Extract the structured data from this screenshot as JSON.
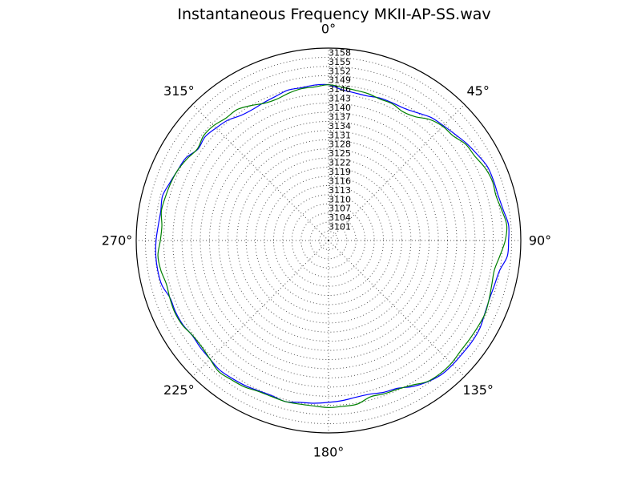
{
  "chart_data": {
    "type": "polar-line",
    "title": "Instantaneous Frequency  MKII-AP-SS.wav",
    "angle_direction": "clockwise",
    "zero_angle": "top",
    "angle_labels": [
      "0°",
      "45°",
      "90°",
      "135°",
      "180°",
      "225°",
      "270°",
      "315°"
    ],
    "radial_ticks": [
      3101,
      3104,
      3107,
      3110,
      3113,
      3116,
      3119,
      3122,
      3125,
      3128,
      3131,
      3134,
      3137,
      3140,
      3143,
      3146,
      3149,
      3152,
      3155,
      3158
    ],
    "r_range": [
      3098,
      3161
    ],
    "grid": true,
    "colors": {
      "blue": "#0000ff",
      "green": "#008000",
      "grid": "#555555",
      "axis": "#000000"
    },
    "series": [
      {
        "color": "blue",
        "theta_step_deg": 5,
        "values": [
          3149.0,
          3147.6,
          3147.1,
          3147.0,
          3147.6,
          3147.7,
          3147.9,
          3149.0,
          3150.5,
          3151.2,
          3152.1,
          3153.3,
          3154.3,
          3155.4,
          3155.5,
          3155.5,
          3156.1,
          3157.2,
          3157.0,
          3156.8,
          3154.9,
          3154.3,
          3154.1,
          3154.5,
          3155.3,
          3155.5,
          3155.4,
          3155.5,
          3155.4,
          3154.5,
          3153.2,
          3151.4,
          3150.9,
          3150.1,
          3150.1,
          3150.6,
          3151.0,
          3151.5,
          3151.8,
          3152.6,
          3152.1,
          3152.3,
          3152.8,
          3153.1,
          3153.4,
          3152.9,
          3152.7,
          3152.4,
          3153.1,
          3153.3,
          3153.2,
          3154.5,
          3154.8,
          3154.8,
          3154.5,
          3154.0,
          3153.8,
          3154.3,
          3153.3,
          3152.5,
          3152.0,
          3150.2,
          3150.8,
          3150.1,
          3149.4,
          3148.0,
          3147.6,
          3147.9,
          3148.3,
          3149.0,
          3148.8,
          3149.1
        ]
      },
      {
        "color": "green",
        "theta_step_deg": 5,
        "values": [
          3149.0,
          3148.4,
          3148.0,
          3147.8,
          3147.3,
          3147.4,
          3146.7,
          3147.5,
          3149.7,
          3150.9,
          3151.3,
          3152.9,
          3153.3,
          3154.5,
          3155.1,
          3154.8,
          3155.6,
          3156.6,
          3155.9,
          3154.4,
          3153.2,
          3153.4,
          3154.0,
          3154.6,
          3154.5,
          3154.4,
          3154.4,
          3154.9,
          3154.9,
          3154.4,
          3152.7,
          3151.7,
          3151.4,
          3151.0,
          3152.4,
          3152.5,
          3152.7,
          3152.4,
          3152.4,
          3152.6,
          3152.4,
          3152.5,
          3153.3,
          3153.6,
          3154.0,
          3152.9,
          3152.2,
          3152.3,
          3153.3,
          3153.6,
          3153.3,
          3153.0,
          3153.8,
          3154.1,
          3153.1,
          3152.8,
          3153.6,
          3153.3,
          3153.0,
          3152.5,
          3151.5,
          3150.4,
          3151.4,
          3151.2,
          3150.3,
          3150.3,
          3149.0,
          3147.6,
          3147.3,
          3148.0,
          3148.5,
          3148.5
        ]
      }
    ]
  }
}
